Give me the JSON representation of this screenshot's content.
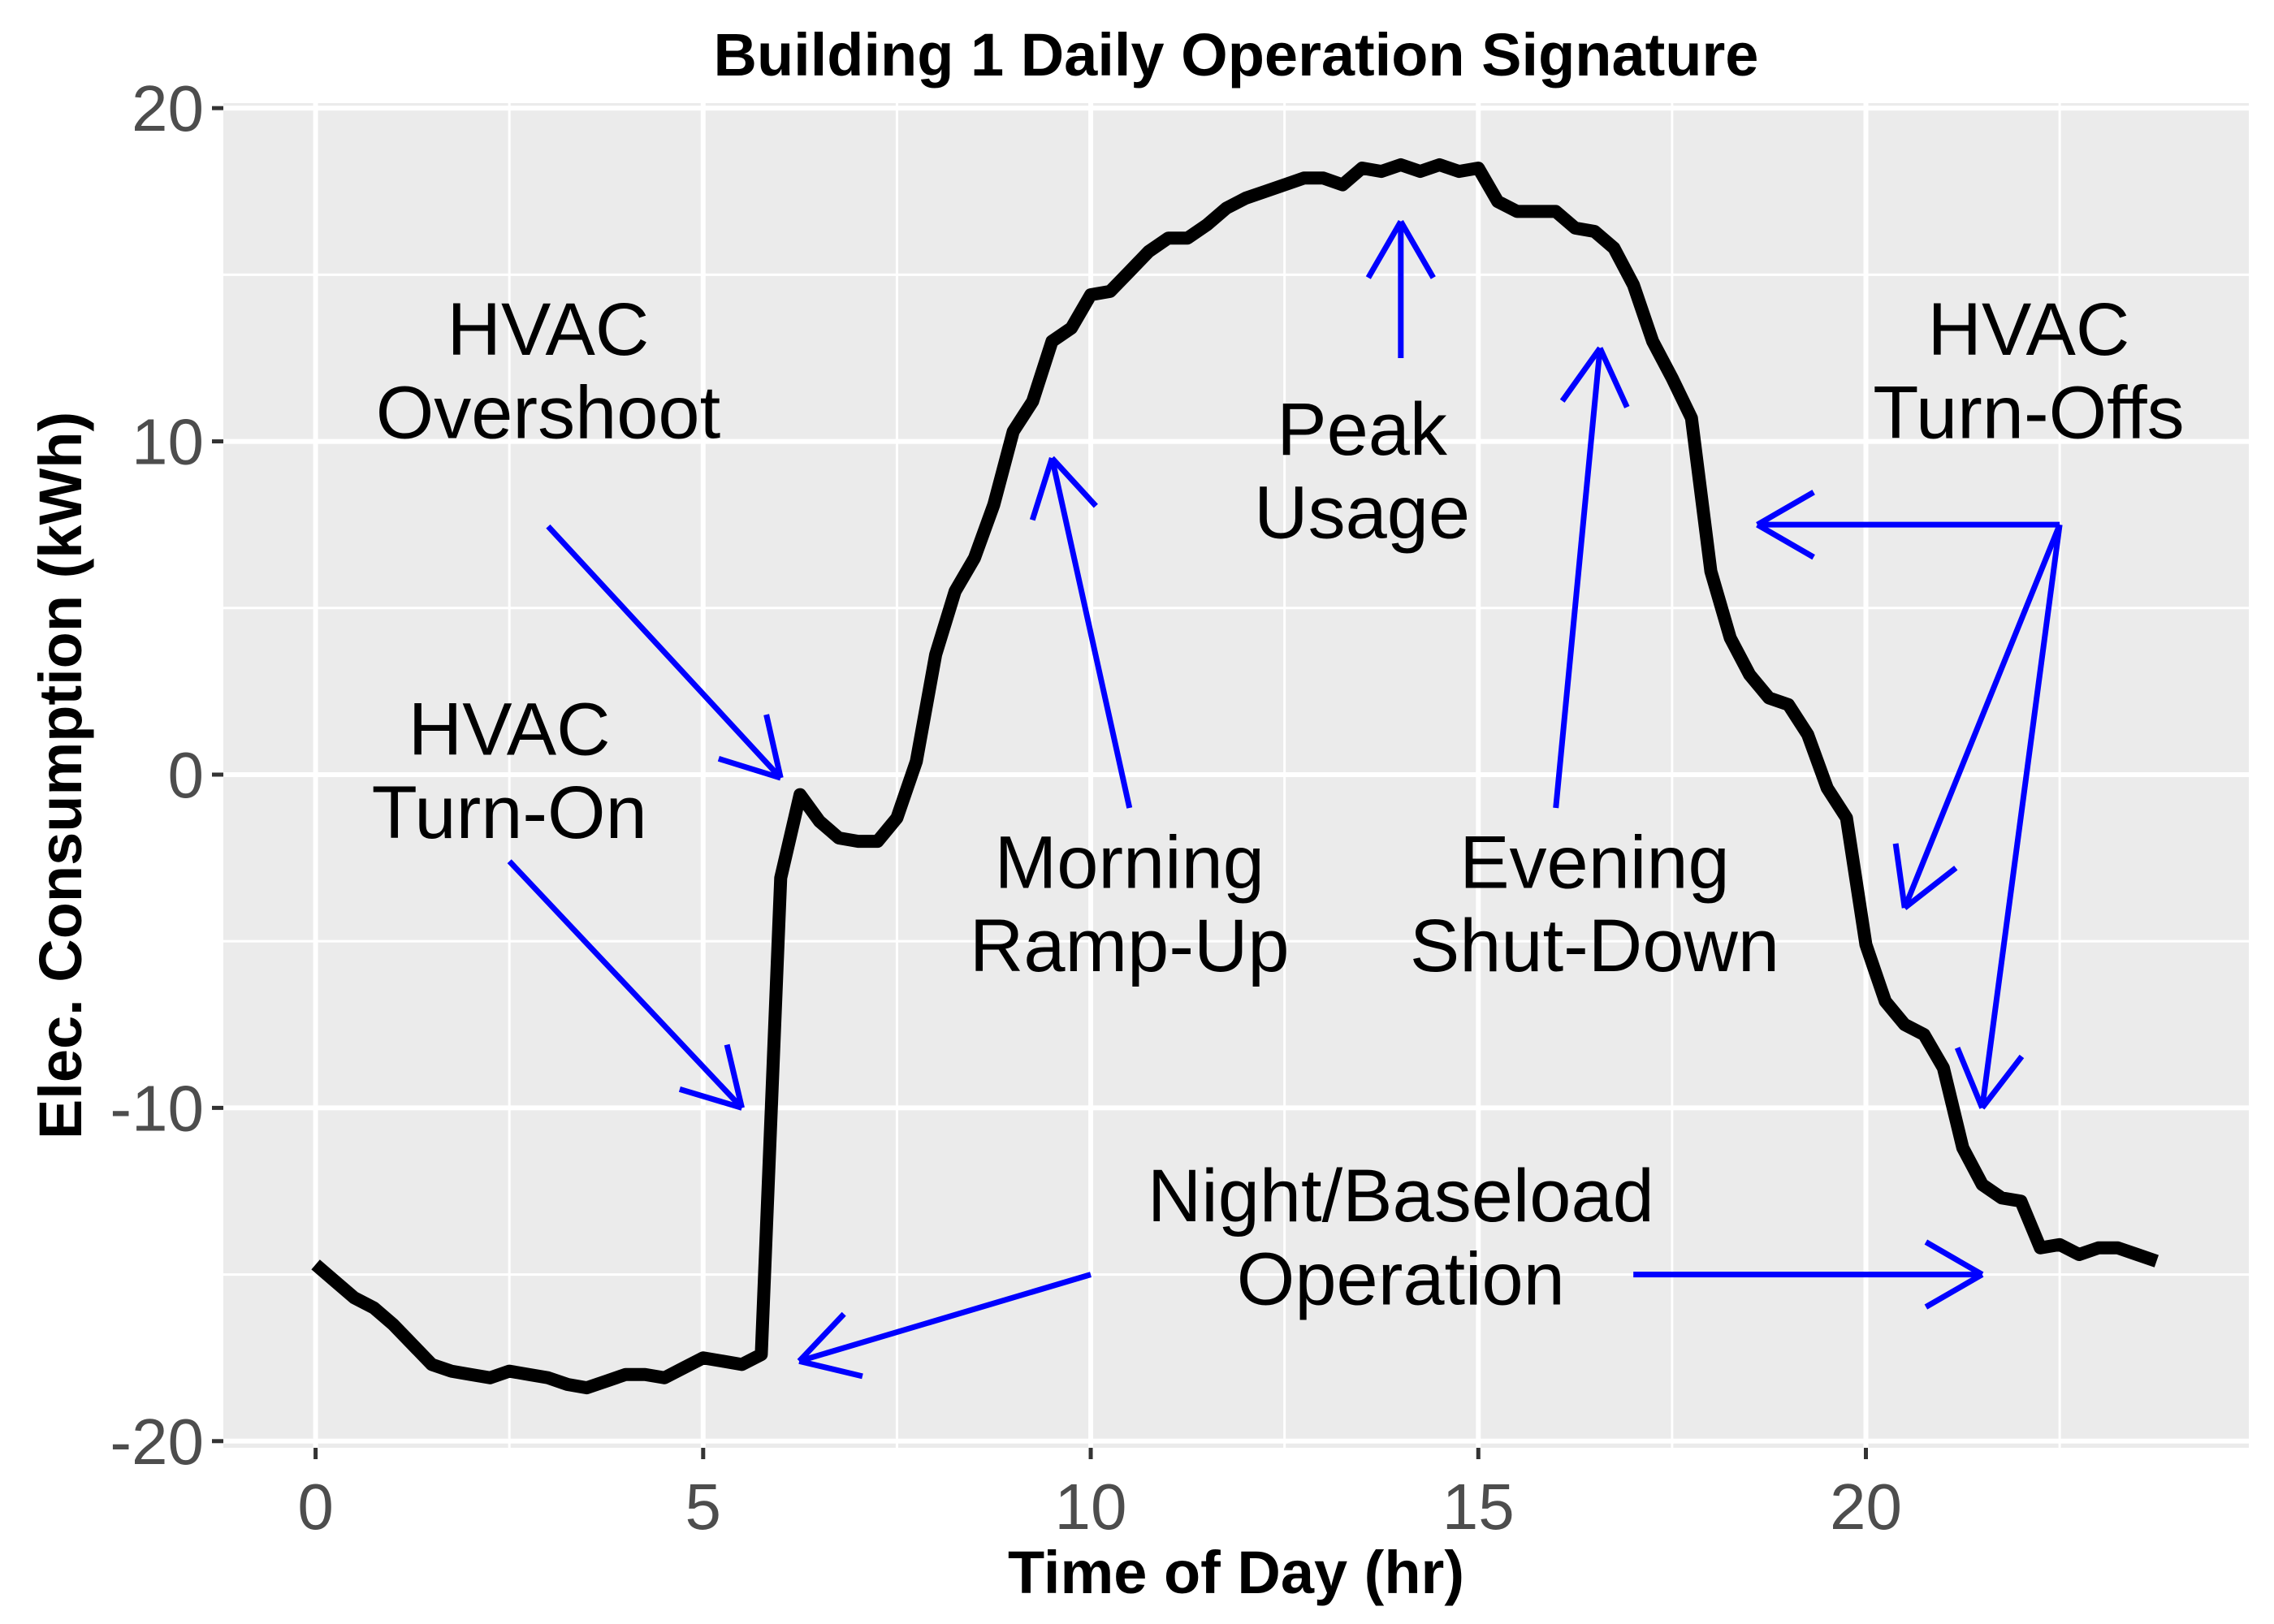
{
  "chart_data": {
    "type": "line",
    "title": "Building 1 Daily Operation Signature",
    "xlabel": "Time of Day (hr)",
    "ylabel": "Elec. Consumption (kWh)",
    "xlim": [
      -1.19,
      24.94
    ],
    "ylim": [
      -20.2,
      20.15
    ],
    "x_ticks": [
      0,
      5,
      10,
      15,
      20
    ],
    "x_tick_labels": [
      "0",
      "5",
      "10",
      "15",
      "20"
    ],
    "x_minor_gridlines": [
      2.5,
      7.5,
      12.5,
      17.5,
      22.5
    ],
    "y_ticks": [
      -20,
      -10,
      0,
      10,
      20
    ],
    "y_tick_labels": [
      "-20",
      "-10",
      "0",
      "10",
      "20"
    ],
    "y_minor_gridlines": [
      -15,
      -5,
      5,
      15
    ],
    "grid": true,
    "legend": "none",
    "background": "#ebebeb",
    "gridline_color": "#ffffff",
    "series": [
      {
        "name": "Building 1",
        "color": "#000000",
        "x": [
          0,
          0.25,
          0.5,
          0.75,
          1.0,
          1.25,
          1.5,
          1.75,
          2.0,
          2.25,
          2.5,
          2.75,
          3.0,
          3.25,
          3.5,
          3.75,
          4.0,
          4.25,
          4.5,
          4.75,
          5.0,
          5.25,
          5.5,
          5.75,
          6.0,
          6.25,
          6.5,
          6.75,
          7.0,
          7.25,
          7.5,
          7.75,
          8.0,
          8.25,
          8.5,
          8.75,
          9.0,
          9.25,
          9.5,
          9.75,
          10.0,
          10.25,
          10.5,
          10.75,
          11.0,
          11.25,
          11.5,
          11.75,
          12.0,
          12.25,
          12.5,
          12.75,
          13.0,
          13.25,
          13.5,
          13.75,
          14.0,
          14.25,
          14.5,
          14.75,
          15.0,
          15.25,
          15.5,
          15.75,
          16.0,
          16.25,
          16.5,
          16.75,
          17.0,
          17.25,
          17.5,
          17.75,
          18.0,
          18.25,
          18.5,
          18.75,
          19.0,
          19.25,
          19.5,
          19.75,
          20.0,
          20.25,
          20.5,
          20.75,
          21.0,
          21.25,
          21.5,
          21.75,
          22.0,
          22.25,
          22.5,
          22.75,
          23.0,
          23.25,
          23.5,
          23.75
        ],
        "y": [
          -14.7,
          -15.2,
          -15.7,
          -16.0,
          -16.5,
          -17.1,
          -17.7,
          -17.9,
          -18.0,
          -18.1,
          -17.9,
          -18.0,
          -18.1,
          -18.3,
          -18.4,
          -18.2,
          -18.0,
          -18.0,
          -18.1,
          -17.8,
          -17.5,
          -17.6,
          -17.7,
          -17.4,
          -3.1,
          -0.6,
          -1.4,
          -1.9,
          -2.0,
          -2.0,
          -1.3,
          0.4,
          3.6,
          5.5,
          6.5,
          8.1,
          10.3,
          11.2,
          13.0,
          13.4,
          14.4,
          14.5,
          15.1,
          15.7,
          16.1,
          16.1,
          16.5,
          17.0,
          17.3,
          17.5,
          17.7,
          17.9,
          17.9,
          17.7,
          18.2,
          18.1,
          18.3,
          18.1,
          18.3,
          18.1,
          18.2,
          17.2,
          16.9,
          16.9,
          16.9,
          16.4,
          16.3,
          15.8,
          14.7,
          13.0,
          11.9,
          10.7,
          6.1,
          4.1,
          3.0,
          2.3,
          2.1,
          1.2,
          -0.4,
          -1.3,
          -5.1,
          -6.8,
          -7.5,
          -7.8,
          -8.8,
          -11.2,
          -12.3,
          -12.7,
          -12.8,
          -14.2,
          -14.1,
          -14.4,
          -14.2,
          -14.2,
          -14.4,
          -14.6
        ]
      }
    ],
    "annotations": [
      {
        "lines": [
          "HVAC",
          "Overshoot"
        ],
        "x": 3.0,
        "baseline_y": [
          12.6,
          10.1
        ]
      },
      {
        "lines": [
          "HVAC",
          "Turn-On"
        ],
        "x": 2.5,
        "baseline_y": [
          0.6,
          -1.9
        ]
      },
      {
        "lines": [
          "Morning",
          "Ramp-Up"
        ],
        "x": 10.5,
        "baseline_y": [
          -3.4,
          -5.9
        ]
      },
      {
        "lines": [
          "Peak",
          "Usage"
        ],
        "x": 13.5,
        "baseline_y": [
          9.6,
          7.1
        ]
      },
      {
        "lines": [
          "Evening",
          "Shut-Down"
        ],
        "x": 16.5,
        "baseline_y": [
          -3.4,
          -5.9
        ]
      },
      {
        "lines": [
          "HVAC",
          "Turn-Offs"
        ],
        "x": 22.1,
        "baseline_y": [
          12.6,
          10.1
        ]
      },
      {
        "lines": [
          "Night/Baseload",
          "Operation"
        ],
        "x": 14.0,
        "baseline_y": [
          -13.4,
          -15.9
        ]
      }
    ],
    "arrows": [
      {
        "label": "hvac-overshoot",
        "from": [
          3.0,
          7.45
        ],
        "to": [
          6.0,
          -0.1
        ]
      },
      {
        "label": "hvac-turn-on",
        "from": [
          2.5,
          -2.6
        ],
        "to": [
          5.5,
          -10.0
        ]
      },
      {
        "label": "morning-ramp-up",
        "from": [
          10.5,
          -1.0
        ],
        "to": [
          9.5,
          9.5
        ]
      },
      {
        "label": "peak-usage",
        "from": [
          14.0,
          12.5
        ],
        "to": [
          14.0,
          16.6
        ]
      },
      {
        "label": "evening-shut-down",
        "from": [
          16.0,
          -1.0
        ],
        "to": [
          16.57,
          12.8
        ]
      },
      {
        "label": "hvac-turn-off-1",
        "from": [
          22.5,
          7.5
        ],
        "to": [
          18.6,
          7.5
        ]
      },
      {
        "label": "hvac-turn-off-2",
        "from": [
          22.5,
          7.5
        ],
        "to": [
          20.5,
          -4.0
        ]
      },
      {
        "label": "hvac-turn-off-3",
        "from": [
          22.5,
          7.5
        ],
        "to": [
          21.5,
          -10.0
        ]
      },
      {
        "label": "baseload-left",
        "from": [
          10.0,
          -15.0
        ],
        "to": [
          6.24,
          -17.6
        ]
      },
      {
        "label": "baseload-right",
        "from": [
          17.0,
          -15.0
        ],
        "to": [
          21.5,
          -15.0
        ]
      }
    ],
    "arrow_color": "#0000ff"
  }
}
